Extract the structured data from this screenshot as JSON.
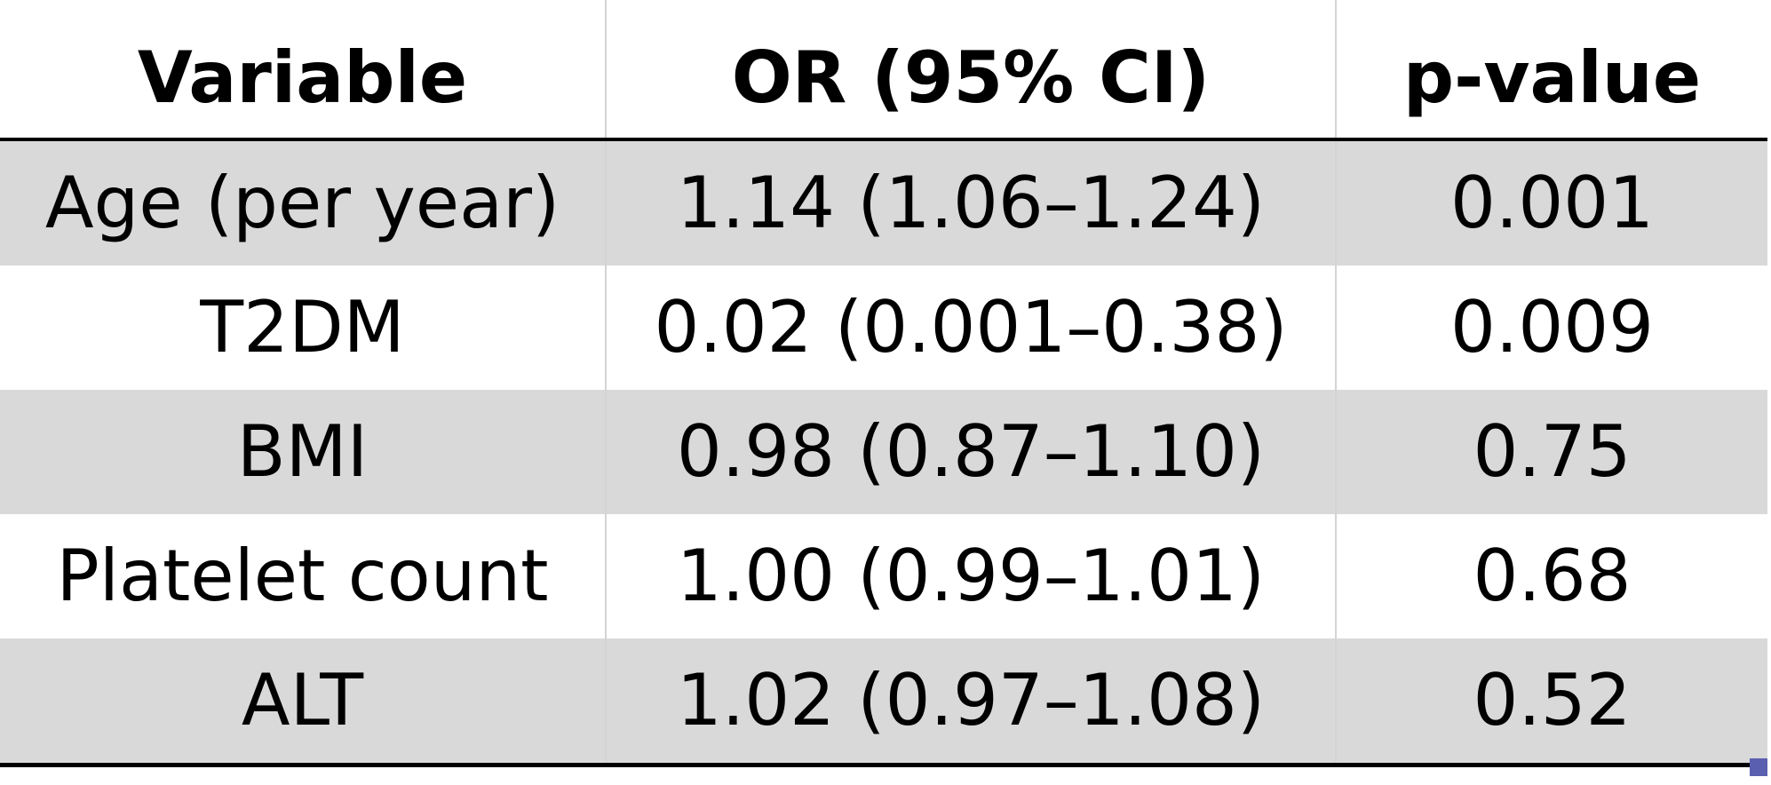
{
  "table": {
    "headers": [
      "Variable",
      "OR (95% CI)",
      "p-value"
    ],
    "rows": [
      {
        "variable": "Age (per year)",
        "or_ci": "1.14 (1.06–1.24)",
        "p_value": "0.001"
      },
      {
        "variable": "T2DM",
        "or_ci": "0.02 (0.001–0.38)",
        "p_value": "0.009"
      },
      {
        "variable": "BMI",
        "or_ci": "0.98 (0.87–1.10)",
        "p_value": "0.75"
      },
      {
        "variable": "Platelet count",
        "or_ci": "1.00 (0.99–1.01)",
        "p_value": "0.68"
      },
      {
        "variable": "ALT",
        "or_ci": "1.02 (0.97–1.08)",
        "p_value": "0.52"
      }
    ]
  },
  "colors": {
    "shaded_row": "#d9d9d9",
    "rule": "#000000",
    "column_divider": "#d4d4d4",
    "corner_mark": "#5b5fb0"
  }
}
